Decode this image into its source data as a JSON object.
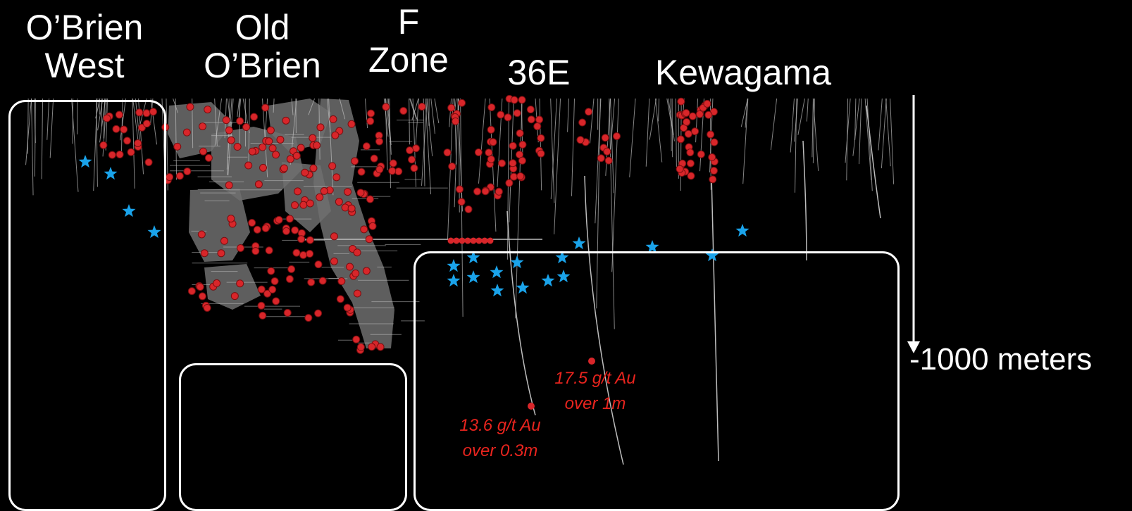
{
  "zones": [
    {
      "id": "obrien-west",
      "line1": "O’Brien",
      "line2": "West"
    },
    {
      "id": "old-obrien",
      "line1": "Old",
      "line2": "O’Brien"
    },
    {
      "id": "f-zone",
      "line1": "F",
      "line2": "Zone"
    },
    {
      "id": "36e",
      "line1": "36E",
      "line2": ""
    },
    {
      "id": "kewagama",
      "line1": "Kewagama",
      "line2": ""
    }
  ],
  "depth_marker": {
    "label": "-1000 meters"
  },
  "assays": [
    {
      "line1": "17.5 g/t Au",
      "line2": "over 1m"
    },
    {
      "line1": "13.6 g/t Au",
      "line2": "over 0.3m"
    }
  ],
  "colors": {
    "background": "#000000",
    "drill_trace": "#bdbdbd",
    "workings": "#6f6f6f",
    "intercept": "#d8262a",
    "target_star": "#1aa3ea",
    "box_outline": "#ffffff",
    "assay_text": "#e8241e"
  },
  "legend_icons": [
    "target-star-icon",
    "intercept-dot-icon"
  ]
}
